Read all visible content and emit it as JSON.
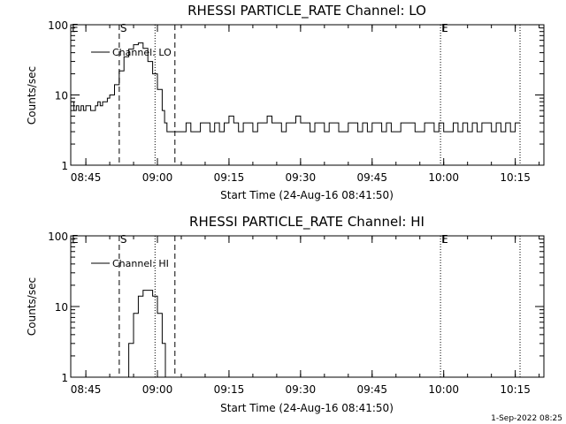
{
  "footer_timestamp": "1-Sep-2022 08:25",
  "chart_data": [
    {
      "type": "line",
      "title": "RHESSI PARTICLE_RATE Channel: LO",
      "xlabel": "Start Time (24-Aug-16 08:41:50)",
      "ylabel": "Counts/sec",
      "yscale": "log",
      "ylim": [
        1,
        100
      ],
      "xlim": [
        "08:41:50",
        "10:21:00"
      ],
      "xticks": [
        "08:45",
        "09:00",
        "09:15",
        "09:30",
        "09:45",
        "10:00",
        "10:15"
      ],
      "yticks": [
        "1",
        "10",
        "100"
      ],
      "grid": false,
      "legend_position": "top-left",
      "markers": [
        {
          "label": "E",
          "time": "08:41:50",
          "style": "dotted"
        },
        {
          "label": "S",
          "time": "08:52:00",
          "style": "dashed"
        },
        {
          "label": "",
          "time": "08:59:30",
          "style": "dotted"
        },
        {
          "label": "",
          "time": "09:03:40",
          "style": "dashed"
        },
        {
          "label": "E",
          "time": "09:59:20",
          "style": "dotted"
        },
        {
          "label": "",
          "time": "10:16:00",
          "style": "dotted"
        }
      ],
      "series": [
        {
          "name": "Channel: LO",
          "x": [
            "08:42:00",
            "08:42:30",
            "08:43:00",
            "08:43:30",
            "08:44:00",
            "08:44:30",
            "08:45:00",
            "08:45:30",
            "08:46:00",
            "08:46:30",
            "08:47:00",
            "08:47:30",
            "08:48:00",
            "08:48:30",
            "08:49:00",
            "08:49:30",
            "08:50:00",
            "08:51:00",
            "08:52:00",
            "08:53:00",
            "08:54:00",
            "08:55:00",
            "08:56:00",
            "08:57:00",
            "08:58:00",
            "08:59:00",
            "09:00:00",
            "09:01:00",
            "09:01:30",
            "09:02:00",
            "09:03:00",
            "09:04:00",
            "09:05:00",
            "09:06:00",
            "09:07:00",
            "09:08:00",
            "09:09:00",
            "09:10:00",
            "09:11:00",
            "09:12:00",
            "09:13:00",
            "09:14:00",
            "09:15:00",
            "09:16:00",
            "09:17:00",
            "09:18:00",
            "09:19:00",
            "09:20:00",
            "09:21:00",
            "09:22:00",
            "09:23:00",
            "09:24:00",
            "09:25:00",
            "09:26:00",
            "09:27:00",
            "09:28:00",
            "09:29:00",
            "09:30:00",
            "09:31:00",
            "09:32:00",
            "09:33:00",
            "09:34:00",
            "09:35:00",
            "09:36:00",
            "09:37:00",
            "09:38:00",
            "09:39:00",
            "09:40:00",
            "09:41:00",
            "09:42:00",
            "09:43:00",
            "09:44:00",
            "09:45:00",
            "09:46:00",
            "09:47:00",
            "09:48:00",
            "09:49:00",
            "09:50:00",
            "09:51:00",
            "09:52:00",
            "09:53:00",
            "09:54:00",
            "09:55:00",
            "09:56:00",
            "09:57:00",
            "09:58:00",
            "09:59:00",
            "10:00:00",
            "10:01:00",
            "10:02:00",
            "10:03:00",
            "10:04:00",
            "10:05:00",
            "10:06:00",
            "10:07:00",
            "10:08:00",
            "10:09:00",
            "10:10:00",
            "10:11:00",
            "10:12:00",
            "10:13:00",
            "10:14:00",
            "10:15:00",
            "10:16:00"
          ],
          "values": [
            8,
            6,
            7,
            6,
            7,
            6,
            7,
            7,
            6,
            6,
            7,
            8,
            7,
            8,
            8,
            9,
            10,
            14,
            22,
            35,
            45,
            52,
            55,
            46,
            30,
            20,
            12,
            6,
            4,
            3,
            3,
            3,
            3,
            4,
            3,
            3,
            4,
            4,
            3,
            4,
            3,
            4,
            5,
            4,
            3,
            4,
            4,
            3,
            4,
            4,
            5,
            4,
            4,
            3,
            4,
            4,
            5,
            4,
            4,
            3,
            4,
            4,
            3,
            4,
            4,
            3,
            3,
            4,
            4,
            3,
            4,
            3,
            4,
            4,
            3,
            4,
            3,
            3,
            4,
            4,
            4,
            3,
            3,
            4,
            4,
            3,
            4,
            3,
            3,
            4,
            3,
            4,
            3,
            4,
            3,
            4,
            4,
            3,
            4,
            3,
            4,
            3,
            4,
            4
          ]
        }
      ]
    },
    {
      "type": "line",
      "title": "RHESSI PARTICLE_RATE Channel: HI",
      "xlabel": "Start Time (24-Aug-16 08:41:50)",
      "ylabel": "Counts/sec",
      "yscale": "log",
      "ylim": [
        1,
        100
      ],
      "xlim": [
        "08:41:50",
        "10:21:00"
      ],
      "xticks": [
        "08:45",
        "09:00",
        "09:15",
        "09:30",
        "09:45",
        "10:00",
        "10:15"
      ],
      "yticks": [
        "1",
        "10",
        "100"
      ],
      "grid": false,
      "legend_position": "top-left",
      "markers": [
        {
          "label": "E",
          "time": "08:41:50",
          "style": "dotted"
        },
        {
          "label": "S",
          "time": "08:52:00",
          "style": "dashed"
        },
        {
          "label": "",
          "time": "08:59:30",
          "style": "dotted"
        },
        {
          "label": "",
          "time": "09:03:40",
          "style": "dashed"
        },
        {
          "label": "E",
          "time": "09:59:20",
          "style": "dotted"
        },
        {
          "label": "",
          "time": "10:16:00",
          "style": "dotted"
        }
      ],
      "series": [
        {
          "name": "Channel: HI",
          "x": [
            "08:53:10",
            "08:54:00",
            "08:55:00",
            "08:56:00",
            "08:57:00",
            "08:58:00",
            "08:59:00",
            "09:00:00",
            "09:01:00",
            "09:01:40"
          ],
          "values": [
            1,
            3,
            8,
            14,
            17,
            17,
            14,
            8,
            3,
            1
          ]
        }
      ]
    }
  ]
}
